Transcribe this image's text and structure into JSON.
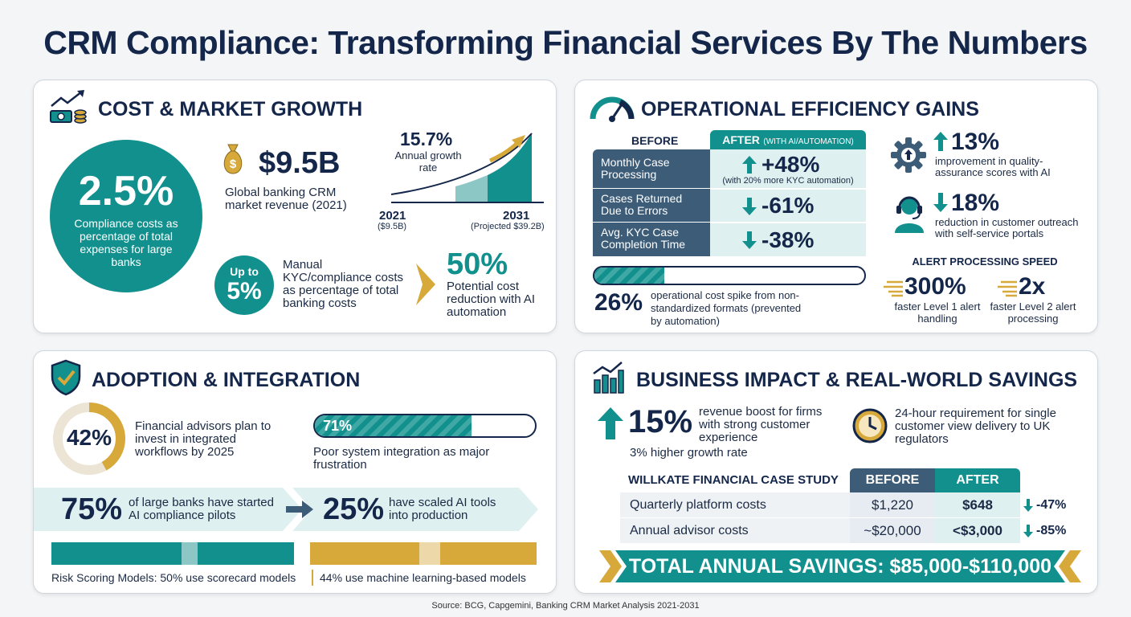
{
  "title": "CRM Compliance: Transforming Financial Services By The Numbers",
  "source": "Source: BCG, Capgemini, Banking CRM Market Analysis 2021-2031",
  "colors": {
    "teal": "#11908d",
    "navy": "#14264a",
    "gold": "#d7a83a",
    "slate": "#3d5c78"
  },
  "cost": {
    "title": "COST & MARKET GROWTH",
    "big_pct": "2.5%",
    "big_desc": "Compliance costs as percentage of total expenses for large banks",
    "revenue_value": "$9.5B",
    "revenue_desc": "Global banking CRM market revenue (2021)",
    "growth_pct": "15.7%",
    "growth_label": "Annual growth rate",
    "year_start": "2021",
    "year_start_value": "($9.5B)",
    "year_end": "2031",
    "year_end_value": "(Projected $39.2B)",
    "upto_label": "Up to",
    "upto_value": "5%",
    "manual_desc": "Manual KYC/compliance costs as percentage of total banking costs",
    "reduction_pct": "50%",
    "reduction_desc": "Potential cost reduction with AI automation"
  },
  "ops": {
    "title": "OPERATIONAL EFFICIENCY GAINS",
    "before_header": "BEFORE",
    "after_header": "AFTER",
    "after_sub": "(WITH AI/AUTOMATION)",
    "rows": [
      {
        "label": "Monthly Case Processing",
        "value": "+48%",
        "note": "(with 20% more KYC automation)",
        "dir": "up"
      },
      {
        "label": "Cases Returned Due to Errors",
        "value": "-61%",
        "note": "",
        "dir": "down"
      },
      {
        "label": "Avg. KYC Case Completion Time",
        "value": "-38%",
        "note": "",
        "dir": "down"
      }
    ],
    "spike_progress": 0.26,
    "spike_pct": "26%",
    "spike_desc": "operational cost spike from non-standardized formats (prevented by automation)",
    "qa_pct": "13%",
    "qa_desc": "improvement in quality-assurance scores with AI",
    "outreach_pct": "18%",
    "outreach_desc": "reduction in customer outreach with self-service portals",
    "alert_title": "ALERT PROCESSING SPEED",
    "alert1_value": "300%",
    "alert1_desc": "faster Level 1 alert handling",
    "alert2_value": "2x",
    "alert2_desc": "faster Level 2 alert processing"
  },
  "adoption": {
    "title": "ADOPTION & INTEGRATION",
    "donut_value": "42%",
    "donut_fraction": 0.42,
    "donut_desc": "Financial advisors plan to invest in integrated workflows by 2025",
    "bar_value": "71%",
    "bar_fraction": 0.71,
    "bar_desc": "Poor system integration as major frustration",
    "pilots_pct": "75%",
    "pilots_desc": "of large banks have started AI compliance pilots",
    "scaled_pct": "25%",
    "scaled_desc": "have scaled AI tools into production",
    "risk_left": "Risk Scoring Models: 50% use scorecard models",
    "risk_right": "44% use machine learning-based models",
    "risk_split": [
      0.5,
      0.44
    ]
  },
  "impact": {
    "title": "BUSINESS IMPACT & REAL-WORLD SAVINGS",
    "rev_pct": "15%",
    "rev_desc": "revenue boost for firms with strong customer experience",
    "growth_note": "3% higher growth rate",
    "req_desc": "24-hour requirement for single customer view delivery to UK regulators",
    "case_title": "WILLKATE FINANCIAL CASE STUDY",
    "before_header": "BEFORE",
    "after_header": "AFTER",
    "rows": [
      {
        "label": "Quarterly platform costs",
        "before": "$1,220",
        "after": "$648",
        "change": "-47%"
      },
      {
        "label": "Annual advisor costs",
        "before": "~$20,000",
        "after": "<$3,000",
        "change": "-85%"
      }
    ],
    "total": "TOTAL ANNUAL SAVINGS: $85,000-$110,000"
  },
  "icons": [
    "chart-money-icon",
    "gauge-icon",
    "shield-check-icon",
    "bar-chart-icon",
    "money-bag-icon",
    "gear-icon",
    "headset-icon",
    "clock-icon",
    "arrow-up-icon",
    "arrow-down-icon"
  ]
}
